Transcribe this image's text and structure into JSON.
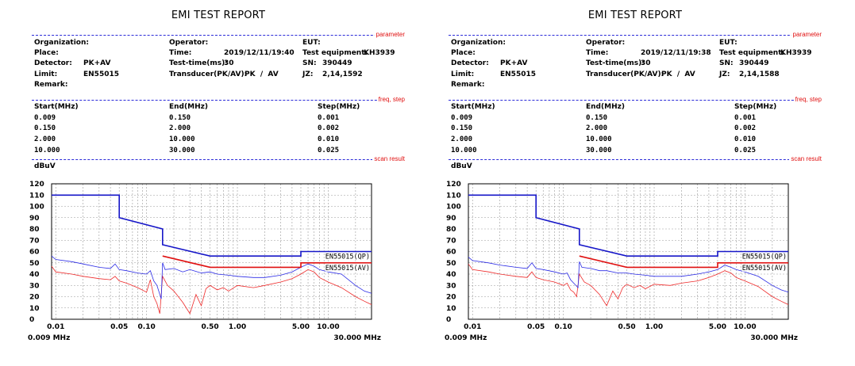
{
  "colors": {
    "separator": "#2b2bd8",
    "section_label": "#e01010",
    "qp_limit": "#1616c8",
    "av_limit": "#e01010",
    "pk_trace": "#2a2ae6",
    "av_trace": "#ee2a2a",
    "grid": "#9a9a9a"
  },
  "reports": [
    {
      "title": "EMI TEST REPORT",
      "sections": {
        "parameter": "parameter",
        "freq": "freq, step",
        "scan": "scan result"
      },
      "params": {
        "organization_label": "Organization:",
        "place_label": "Place:",
        "detector_label": "Detector:",
        "detector_value": "PK+AV",
        "limit_label": "Limit:",
        "limit_value": "EN55015",
        "remark_label": "Remark:",
        "operator_label": "Operator:",
        "time_label": "Time:",
        "time_value": "2019/12/11/19:40",
        "testtime_label": "Test-time(ms):",
        "testtime_value": "30",
        "transducer_label": "Transducer(PK/AV):",
        "transducer_value": "PK  /  AV",
        "eut_label": "EUT:",
        "equipment_label": "Test equipment:",
        "equipment_value": "KH3939",
        "sn_label": "SN:",
        "sn_value": "390449",
        "jz_label": "JZ:",
        "jz_value": "2,14,1592"
      },
      "freq_table": {
        "headers": [
          "Start(MHz)",
          "End(MHz)",
          "Step(MHz)"
        ],
        "rows": [
          [
            "0.009",
            "0.150",
            "0.001"
          ],
          [
            "0.150",
            "2.000",
            "0.002"
          ],
          [
            "2.000",
            "10.000",
            "0.010"
          ],
          [
            "10.000",
            "30.000",
            "0.025"
          ]
        ]
      },
      "chart_data": {
        "type": "line",
        "ylabel": "dBuV",
        "ylim": [
          0,
          120
        ],
        "yticks": [
          "0",
          "10",
          "20",
          "30",
          "40",
          "50",
          "60",
          "70",
          "80",
          "90",
          "100",
          "110",
          "120"
        ],
        "xscale": "log",
        "xlim": [
          0.009,
          30
        ],
        "xtick_values": [
          0.01,
          0.05,
          0.1,
          0.5,
          1.0,
          5.0,
          10.0
        ],
        "xtick_labels": [
          "0.01",
          "0.05",
          "0.10",
          "0.50",
          "1.00",
          "5.00",
          "10.00"
        ],
        "x_start_label": "0.009 MHz",
        "x_end_label": "30.000 MHz",
        "grid": true,
        "limit_labels": [
          "EN55015(QP)",
          "EN55015(AV)"
        ],
        "qp_limit": [
          [
            0.009,
            110
          ],
          [
            0.05,
            110
          ],
          [
            0.05,
            90
          ],
          [
            0.15,
            80
          ],
          [
            0.15,
            66
          ],
          [
            0.5,
            56
          ],
          [
            5,
            56
          ],
          [
            5,
            60
          ],
          [
            30,
            60
          ]
        ],
        "av_limit": [
          [
            0.15,
            56
          ],
          [
            0.5,
            46
          ],
          [
            5,
            46
          ],
          [
            5,
            50
          ],
          [
            30,
            50
          ]
        ],
        "series": [
          {
            "points": [
              [
                0.009,
                56
              ],
              [
                0.01,
                53
              ],
              [
                0.015,
                51
              ],
              [
                0.02,
                49
              ],
              [
                0.03,
                46
              ],
              [
                0.04,
                45
              ],
              [
                0.045,
                49
              ],
              [
                0.05,
                44
              ],
              [
                0.06,
                43
              ],
              [
                0.08,
                41
              ],
              [
                0.1,
                40
              ],
              [
                0.11,
                43
              ],
              [
                0.12,
                34
              ],
              [
                0.13,
                30
              ],
              [
                0.145,
                18
              ],
              [
                0.15,
                50
              ],
              [
                0.16,
                44
              ],
              [
                0.2,
                45
              ],
              [
                0.25,
                42
              ],
              [
                0.3,
                44
              ],
              [
                0.4,
                41
              ],
              [
                0.5,
                42
              ],
              [
                0.6,
                40
              ],
              [
                0.8,
                39
              ],
              [
                1,
                38
              ],
              [
                1.5,
                37
              ],
              [
                2,
                37
              ],
              [
                3,
                39
              ],
              [
                4,
                42
              ],
              [
                5,
                46
              ],
              [
                6,
                49
              ],
              [
                7,
                47
              ],
              [
                8,
                44
              ],
              [
                10,
                42
              ],
              [
                14,
                40
              ],
              [
                20,
                30
              ],
              [
                25,
                25
              ],
              [
                30,
                23
              ]
            ]
          },
          {
            "points": [
              [
                0.009,
                47
              ],
              [
                0.01,
                42
              ],
              [
                0.015,
                40
              ],
              [
                0.02,
                38
              ],
              [
                0.03,
                36
              ],
              [
                0.04,
                35
              ],
              [
                0.045,
                38
              ],
              [
                0.05,
                34
              ],
              [
                0.06,
                32
              ],
              [
                0.08,
                28
              ],
              [
                0.1,
                24
              ],
              [
                0.11,
                35
              ],
              [
                0.12,
                20
              ],
              [
                0.13,
                14
              ],
              [
                0.14,
                5
              ],
              [
                0.15,
                38
              ],
              [
                0.17,
                30
              ],
              [
                0.2,
                25
              ],
              [
                0.25,
                15
              ],
              [
                0.3,
                5
              ],
              [
                0.35,
                22
              ],
              [
                0.4,
                12
              ],
              [
                0.45,
                27
              ],
              [
                0.5,
                30
              ],
              [
                0.6,
                26
              ],
              [
                0.7,
                28
              ],
              [
                0.8,
                25
              ],
              [
                1,
                30
              ],
              [
                1.5,
                28
              ],
              [
                2,
                30
              ],
              [
                3,
                33
              ],
              [
                4,
                36
              ],
              [
                5,
                40
              ],
              [
                6,
                44
              ],
              [
                7,
                42
              ],
              [
                8,
                37
              ],
              [
                10,
                33
              ],
              [
                14,
                28
              ],
              [
                20,
                20
              ],
              [
                25,
                16
              ],
              [
                30,
                13
              ]
            ]
          }
        ]
      }
    },
    {
      "title": "EMI TEST REPORT",
      "sections": {
        "parameter": "parameter",
        "freq": "freq, step",
        "scan": "scan result"
      },
      "params": {
        "organization_label": "Organization:",
        "place_label": "Place:",
        "detector_label": "Detector:",
        "detector_value": "PK+AV",
        "limit_label": "Limit:",
        "limit_value": "EN55015",
        "remark_label": "Remark:",
        "operator_label": "Operator:",
        "time_label": "Time:",
        "time_value": "2019/12/11/19:38",
        "testtime_label": "Test-time(ms):",
        "testtime_value": "30",
        "transducer_label": "Transducer(PK/AV):",
        "transducer_value": "PK  /  AV",
        "eut_label": "EUT:",
        "equipment_label": "Test equipment:",
        "equipment_value": "KH3939",
        "sn_label": "SN:",
        "sn_value": "390449",
        "jz_label": "JZ:",
        "jz_value": "2,14,1588"
      },
      "freq_table": {
        "headers": [
          "Start(MHz)",
          "End(MHz)",
          "Step(MHz)"
        ],
        "rows": [
          [
            "0.009",
            "0.150",
            "0.001"
          ],
          [
            "0.150",
            "2.000",
            "0.002"
          ],
          [
            "2.000",
            "10.000",
            "0.010"
          ],
          [
            "10.000",
            "30.000",
            "0.025"
          ]
        ]
      },
      "chart_data": {
        "type": "line",
        "ylabel": "dBuV",
        "ylim": [
          0,
          120
        ],
        "yticks": [
          "0",
          "10",
          "20",
          "30",
          "40",
          "50",
          "60",
          "70",
          "80",
          "90",
          "100",
          "110",
          "120"
        ],
        "xscale": "log",
        "xlim": [
          0.009,
          30
        ],
        "xtick_values": [
          0.01,
          0.05,
          0.1,
          0.5,
          1.0,
          5.0,
          10.0
        ],
        "xtick_labels": [
          "0.01",
          "0.05",
          "0.10",
          "0.50",
          "1.00",
          "5.00",
          "10.00"
        ],
        "x_start_label": "0.009 MHz",
        "x_end_label": "30.000 MHz",
        "grid": true,
        "limit_labels": [
          "EN55015(QP)",
          "EN55015(AV)"
        ],
        "qp_limit": [
          [
            0.009,
            110
          ],
          [
            0.05,
            110
          ],
          [
            0.05,
            90
          ],
          [
            0.15,
            80
          ],
          [
            0.15,
            66
          ],
          [
            0.5,
            56
          ],
          [
            5,
            56
          ],
          [
            5,
            60
          ],
          [
            30,
            60
          ]
        ],
        "av_limit": [
          [
            0.15,
            56
          ],
          [
            0.5,
            46
          ],
          [
            5,
            46
          ],
          [
            5,
            50
          ],
          [
            30,
            50
          ]
        ],
        "series": [
          {
            "points": [
              [
                0.009,
                55
              ],
              [
                0.01,
                52
              ],
              [
                0.015,
                50
              ],
              [
                0.02,
                48
              ],
              [
                0.03,
                46
              ],
              [
                0.04,
                45
              ],
              [
                0.045,
                50
              ],
              [
                0.05,
                45
              ],
              [
                0.06,
                44
              ],
              [
                0.08,
                42
              ],
              [
                0.1,
                40
              ],
              [
                0.11,
                41
              ],
              [
                0.12,
                35
              ],
              [
                0.13,
                32
              ],
              [
                0.145,
                28
              ],
              [
                0.15,
                51
              ],
              [
                0.16,
                46
              ],
              [
                0.2,
                45
              ],
              [
                0.25,
                43
              ],
              [
                0.3,
                43
              ],
              [
                0.4,
                41
              ],
              [
                0.5,
                41
              ],
              [
                0.6,
                40
              ],
              [
                0.8,
                39
              ],
              [
                1,
                38
              ],
              [
                1.5,
                38
              ],
              [
                2,
                38
              ],
              [
                3,
                40
              ],
              [
                4,
                42
              ],
              [
                5,
                44
              ],
              [
                6,
                48
              ],
              [
                7,
                46
              ],
              [
                8,
                44
              ],
              [
                10,
                42
              ],
              [
                14,
                38
              ],
              [
                20,
                30
              ],
              [
                25,
                26
              ],
              [
                30,
                24
              ]
            ]
          },
          {
            "points": [
              [
                0.009,
                49
              ],
              [
                0.01,
                44
              ],
              [
                0.015,
                42
              ],
              [
                0.02,
                40
              ],
              [
                0.03,
                38
              ],
              [
                0.04,
                37
              ],
              [
                0.045,
                42
              ],
              [
                0.05,
                37
              ],
              [
                0.06,
                35
              ],
              [
                0.08,
                33
              ],
              [
                0.1,
                30
              ],
              [
                0.11,
                32
              ],
              [
                0.12,
                26
              ],
              [
                0.13,
                24
              ],
              [
                0.14,
                20
              ],
              [
                0.15,
                40
              ],
              [
                0.17,
                33
              ],
              [
                0.2,
                30
              ],
              [
                0.25,
                22
              ],
              [
                0.3,
                12
              ],
              [
                0.35,
                25
              ],
              [
                0.4,
                18
              ],
              [
                0.45,
                28
              ],
              [
                0.5,
                31
              ],
              [
                0.6,
                28
              ],
              [
                0.7,
                30
              ],
              [
                0.8,
                27
              ],
              [
                1,
                31
              ],
              [
                1.5,
                30
              ],
              [
                2,
                32
              ],
              [
                3,
                34
              ],
              [
                4,
                37
              ],
              [
                5,
                40
              ],
              [
                6,
                43
              ],
              [
                7,
                41
              ],
              [
                8,
                37
              ],
              [
                10,
                34
              ],
              [
                14,
                29
              ],
              [
                20,
                20
              ],
              [
                25,
                16
              ],
              [
                30,
                13
              ]
            ]
          }
        ]
      }
    }
  ]
}
